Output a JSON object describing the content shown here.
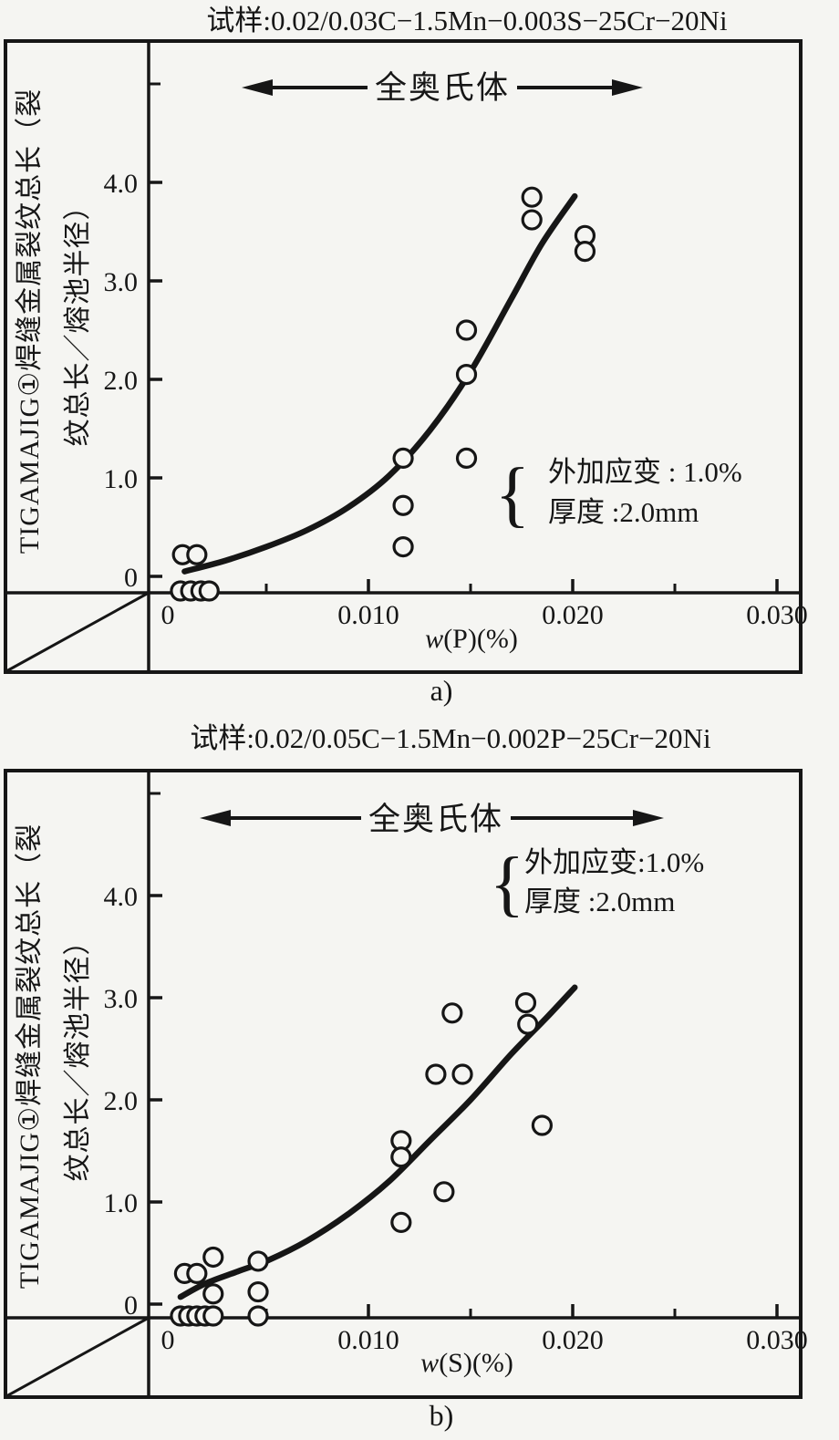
{
  "page": {
    "background": "#f5f5f2",
    "ink": "#161616"
  },
  "figure": {
    "y_axis_label_line1": "TIGAMAJIG①焊缝金属裂纹总长（裂",
    "y_axis_label_line2": "纹总长／熔池半径）"
  },
  "chart_data": [
    {
      "type": "scatter",
      "panel": "a)",
      "title": "试样:0.02/0.03C−1.5Mn−0.003S−25Cr−20Ni",
      "xlabel": "w(P)(%)",
      "ylabel": "TIGAMAJIG①焊缝金属裂纹总长（裂纹总长／熔池半径）",
      "region_annotation": "全奥氏体",
      "condition_brace": "{",
      "condition_lines": [
        "外加应变 : 1.0%",
        "厚度 :2.0mm"
      ],
      "xlim": [
        0,
        0.03
      ],
      "ylim": [
        0,
        5.2
      ],
      "grid": false,
      "legend": "none",
      "x_ticks": [
        0,
        0.01,
        0.02,
        0.03
      ],
      "x_tick_labels": [
        "0",
        "0.010",
        "0.020",
        "0.030"
      ],
      "x_minor_ticks": [
        0.005,
        0.015,
        0.025
      ],
      "y_ticks": [
        0,
        1.0,
        2.0,
        3.0,
        4.0
      ],
      "y_tick_labels": [
        "0",
        "1.0",
        "2.0",
        "3.0",
        "4.0"
      ],
      "y_unlabeled_ticks": [
        5.0
      ],
      "axis_break_lower_left": true,
      "points": [
        [
          0.0008,
          0
        ],
        [
          0.0013,
          0
        ],
        [
          0.0018,
          0
        ],
        [
          0.0022,
          0
        ],
        [
          0.0009,
          0.22
        ],
        [
          0.0016,
          0.22
        ],
        [
          0.0117,
          1.2
        ],
        [
          0.0117,
          0.72
        ],
        [
          0.0117,
          0.3
        ],
        [
          0.0148,
          2.5
        ],
        [
          0.0148,
          2.05
        ],
        [
          0.0148,
          1.2
        ],
        [
          0.018,
          3.85
        ],
        [
          0.018,
          3.62
        ],
        [
          0.0206,
          3.46
        ],
        [
          0.0206,
          3.3
        ]
      ],
      "trend_curve": [
        [
          0.001,
          0.05
        ],
        [
          0.003,
          0.16
        ],
        [
          0.005,
          0.3
        ],
        [
          0.007,
          0.47
        ],
        [
          0.009,
          0.7
        ],
        [
          0.011,
          1.02
        ],
        [
          0.013,
          1.48
        ],
        [
          0.015,
          2.08
        ],
        [
          0.017,
          2.82
        ],
        [
          0.0185,
          3.38
        ],
        [
          0.0201,
          3.86
        ]
      ]
    },
    {
      "type": "scatter",
      "panel": "b)",
      "title": "试样:0.02/0.05C−1.5Mn−0.002P−25Cr−20Ni",
      "xlabel": "w(S)(%)",
      "ylabel": "TIGAMAJIG①焊缝金属裂纹总长（裂纹总长／熔池半径）",
      "region_annotation": "全奥氏体",
      "condition_brace": "{",
      "condition_lines": [
        "外加应变:1.0%",
        "厚度 :2.0mm"
      ],
      "xlim": [
        0,
        0.03
      ],
      "ylim": [
        0,
        5.2
      ],
      "grid": false,
      "legend": "none",
      "x_ticks": [
        0,
        0.01,
        0.02,
        0.03
      ],
      "x_tick_labels": [
        "0",
        "0.010",
        "0.020",
        "0.030"
      ],
      "x_minor_ticks": [
        0.005,
        0.015,
        0.025
      ],
      "y_ticks": [
        0,
        1.0,
        2.0,
        3.0,
        4.0
      ],
      "y_tick_labels": [
        "0",
        "1.0",
        "2.0",
        "3.0",
        "4.0"
      ],
      "y_unlabeled_ticks": [
        5.0
      ],
      "axis_break_lower_left": true,
      "points": [
        [
          0.0008,
          0
        ],
        [
          0.0012,
          0
        ],
        [
          0.0016,
          0
        ],
        [
          0.002,
          0
        ],
        [
          0.0024,
          0
        ],
        [
          0.0046,
          0
        ],
        [
          0.001,
          0.3
        ],
        [
          0.0016,
          0.3
        ],
        [
          0.0024,
          0.46
        ],
        [
          0.0024,
          0.1
        ],
        [
          0.0046,
          0.42
        ],
        [
          0.0046,
          0.12
        ],
        [
          0.0116,
          1.6
        ],
        [
          0.0116,
          1.44
        ],
        [
          0.0116,
          0.8
        ],
        [
          0.0137,
          1.1
        ],
        [
          0.0133,
          2.25
        ],
        [
          0.0146,
          2.25
        ],
        [
          0.0141,
          2.85
        ],
        [
          0.0177,
          2.95
        ],
        [
          0.0178,
          2.74
        ],
        [
          0.0185,
          1.75
        ]
      ],
      "trend_curve": [
        [
          0.0008,
          0.07
        ],
        [
          0.002,
          0.2
        ],
        [
          0.0036,
          0.32
        ],
        [
          0.0051,
          0.43
        ],
        [
          0.007,
          0.62
        ],
        [
          0.009,
          0.88
        ],
        [
          0.011,
          1.2
        ],
        [
          0.013,
          1.6
        ],
        [
          0.015,
          2.0
        ],
        [
          0.017,
          2.45
        ],
        [
          0.0187,
          2.8
        ],
        [
          0.0201,
          3.1
        ]
      ]
    }
  ]
}
